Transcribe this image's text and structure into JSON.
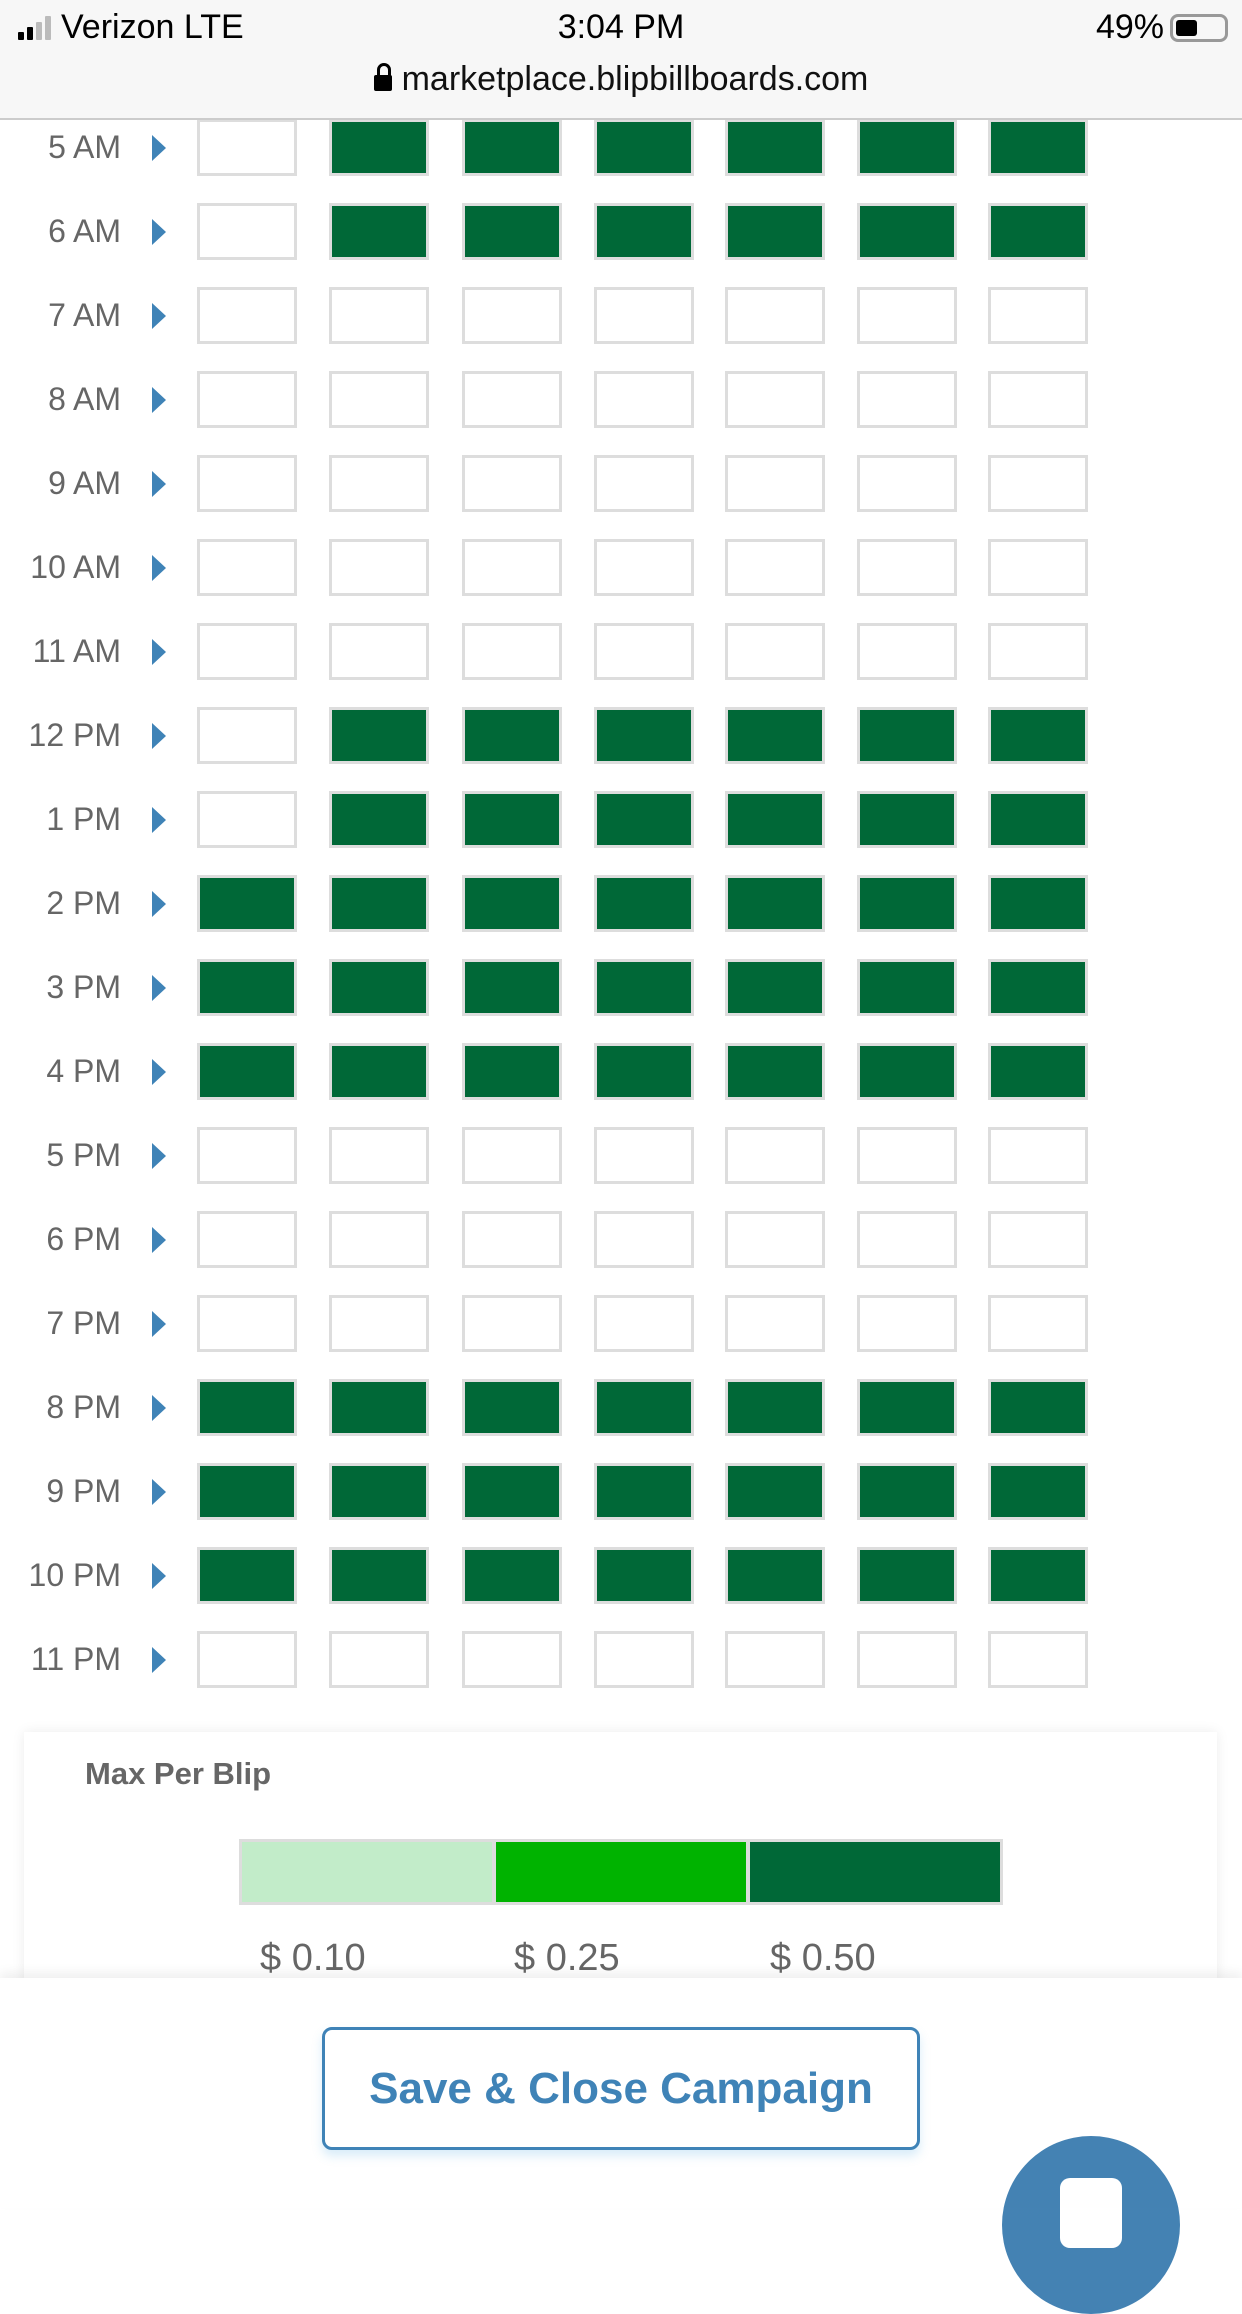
{
  "status_bar": {
    "carrier": "Verizon LTE",
    "time": "3:04 PM",
    "battery": "49%",
    "url": "marketplace.blipbillboards.com"
  },
  "schedule": {
    "rows": [
      {
        "hour": "5 AM",
        "cells": [
          0,
          1,
          1,
          1,
          1,
          1,
          1
        ]
      },
      {
        "hour": "6 AM",
        "cells": [
          0,
          1,
          1,
          1,
          1,
          1,
          1
        ]
      },
      {
        "hour": "7 AM",
        "cells": [
          0,
          0,
          0,
          0,
          0,
          0,
          0
        ]
      },
      {
        "hour": "8 AM",
        "cells": [
          0,
          0,
          0,
          0,
          0,
          0,
          0
        ]
      },
      {
        "hour": "9 AM",
        "cells": [
          0,
          0,
          0,
          0,
          0,
          0,
          0
        ]
      },
      {
        "hour": "10 AM",
        "cells": [
          0,
          0,
          0,
          0,
          0,
          0,
          0
        ]
      },
      {
        "hour": "11 AM",
        "cells": [
          0,
          0,
          0,
          0,
          0,
          0,
          0
        ]
      },
      {
        "hour": "12 PM",
        "cells": [
          0,
          1,
          1,
          1,
          1,
          1,
          1
        ]
      },
      {
        "hour": "1 PM",
        "cells": [
          0,
          1,
          1,
          1,
          1,
          1,
          1
        ]
      },
      {
        "hour": "2 PM",
        "cells": [
          1,
          1,
          1,
          1,
          1,
          1,
          1
        ]
      },
      {
        "hour": "3 PM",
        "cells": [
          1,
          1,
          1,
          1,
          1,
          1,
          1
        ]
      },
      {
        "hour": "4 PM",
        "cells": [
          1,
          1,
          1,
          1,
          1,
          1,
          1
        ]
      },
      {
        "hour": "5 PM",
        "cells": [
          0,
          0,
          0,
          0,
          0,
          0,
          0
        ]
      },
      {
        "hour": "6 PM",
        "cells": [
          0,
          0,
          0,
          0,
          0,
          0,
          0
        ]
      },
      {
        "hour": "7 PM",
        "cells": [
          0,
          0,
          0,
          0,
          0,
          0,
          0
        ]
      },
      {
        "hour": "8 PM",
        "cells": [
          1,
          1,
          1,
          1,
          1,
          1,
          1
        ]
      },
      {
        "hour": "9 PM",
        "cells": [
          1,
          1,
          1,
          1,
          1,
          1,
          1
        ]
      },
      {
        "hour": "10 PM",
        "cells": [
          1,
          1,
          1,
          1,
          1,
          1,
          1
        ]
      },
      {
        "hour": "11 PM",
        "cells": [
          0,
          0,
          0,
          0,
          0,
          0,
          0
        ]
      }
    ],
    "filled_color": "#006837"
  },
  "legend": {
    "title": "Max Per Blip",
    "levels": [
      {
        "label": "$ 0.10",
        "color": "#c2ecc9"
      },
      {
        "label": "$ 0.25",
        "color": "#00b300"
      },
      {
        "label": "$ 0.50",
        "color": "#006837"
      }
    ]
  },
  "footer": {
    "save_label": "Save & Close Campaign",
    "accent": "#3f83b7"
  }
}
